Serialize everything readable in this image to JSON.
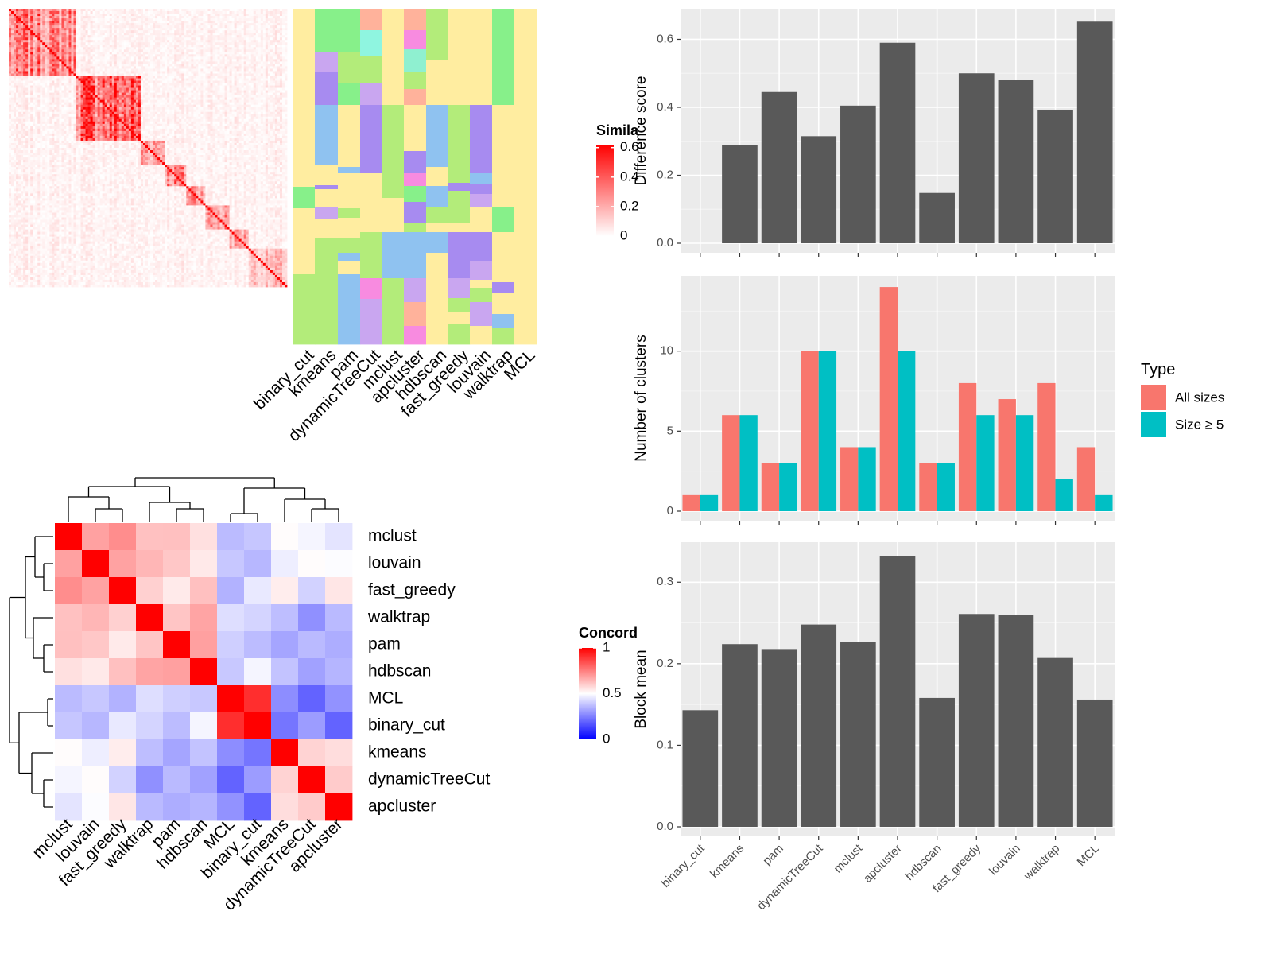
{
  "methods": [
    "binary_cut",
    "kmeans",
    "pam",
    "dynamicTreeCut",
    "mclust",
    "apcluster",
    "hdbscan",
    "fast_greedy",
    "louvain",
    "walktrap",
    "MCL"
  ],
  "similarity_heatmap": {
    "legend_title": "Simila",
    "legend_ticks": [
      "0.6",
      "0.4",
      "0.2",
      "0"
    ],
    "legend_values": [
      0.6,
      0.4,
      0.2,
      0
    ],
    "column_labels": [
      "binary_cut",
      "kmeans",
      "pam",
      "dynamicTreeCut",
      "mclust",
      "apcluster",
      "hdbscan",
      "fast_greedy",
      "louvain",
      "walktrap",
      "MCL"
    ],
    "colors": {
      "low": "#FFFFFF",
      "high": "#FF0000"
    }
  },
  "concordance_heatmap": {
    "legend_title": "Concord",
    "legend_ticks": [
      "1",
      "0.5",
      "0"
    ],
    "legend_values": [
      1,
      0.5,
      0
    ],
    "order": [
      "mclust",
      "louvain",
      "fast_greedy",
      "walktrap",
      "pam",
      "hdbscan",
      "MCL",
      "binary_cut",
      "kmeans",
      "dynamicTreeCut",
      "apcluster"
    ],
    "colors": {
      "low": "#0000FF",
      "mid": "#FFFFFF",
      "high": "#FF0000"
    }
  },
  "chart_data": [
    {
      "type": "bar",
      "categories": [
        "binary_cut",
        "kmeans",
        "pam",
        "dynamicTreeCut",
        "mclust",
        "apcluster",
        "hdbscan",
        "fast_greedy",
        "louvain",
        "walktrap",
        "MCL"
      ],
      "values": [
        0,
        0.29,
        0.445,
        0.315,
        0.405,
        0.59,
        0.148,
        0.5,
        0.48,
        0.393,
        0.652
      ],
      "title": "",
      "xlabel": "",
      "ylabel": "Difference score",
      "ylim": [
        0,
        0.69
      ],
      "yticks": [
        0,
        0.2,
        0.4,
        0.6
      ],
      "ytick_labels": [
        "0.0",
        "0.2",
        "0.4",
        "0.6"
      ],
      "grid": true,
      "color": "#595959"
    },
    {
      "type": "bar",
      "categories": [
        "binary_cut",
        "kmeans",
        "pam",
        "dynamicTreeCut",
        "mclust",
        "apcluster",
        "hdbscan",
        "fast_greedy",
        "louvain",
        "walktrap",
        "MCL"
      ],
      "series": [
        {
          "name": "All sizes",
          "values": [
            1,
            6,
            3,
            10,
            4,
            14,
            3,
            8,
            7,
            8,
            4
          ],
          "color": "#F8766D"
        },
        {
          "name": "Size ≥ 5",
          "values": [
            1,
            6,
            3,
            10,
            4,
            10,
            3,
            6,
            6,
            2,
            1
          ],
          "color": "#00BFC4"
        }
      ],
      "title": "",
      "xlabel": "",
      "ylabel": "Number of clusters",
      "ylim": [
        0,
        14.7
      ],
      "yticks": [
        0,
        5,
        10
      ],
      "ytick_labels": [
        "0",
        "5",
        "10"
      ],
      "legend": {
        "title": "Type",
        "position": "right"
      },
      "grid": true
    },
    {
      "type": "bar",
      "categories": [
        "binary_cut",
        "kmeans",
        "pam",
        "dynamicTreeCut",
        "mclust",
        "apcluster",
        "hdbscan",
        "fast_greedy",
        "louvain",
        "walktrap",
        "MCL"
      ],
      "values": [
        0.143,
        0.224,
        0.218,
        0.248,
        0.227,
        0.332,
        0.158,
        0.261,
        0.26,
        0.207,
        0.156
      ],
      "title": "",
      "xlabel": "",
      "ylabel": "Block mean",
      "ylim": [
        0,
        0.349
      ],
      "yticks": [
        0,
        0.1,
        0.2,
        0.3
      ],
      "ytick_labels": [
        "0.0",
        "0.1",
        "0.2",
        "0.3"
      ],
      "grid": true,
      "color": "#595959"
    }
  ]
}
